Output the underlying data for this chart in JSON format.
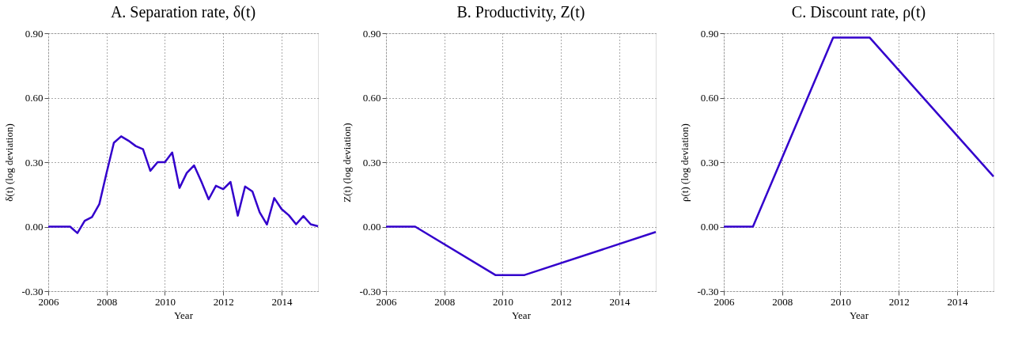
{
  "chart_data": [
    {
      "type": "line",
      "title": "A. Separation rate, δ(t)",
      "xlabel": "Year",
      "ylabel": "δ(t)  (log deviation)",
      "x": [
        2006,
        2006.75,
        2007,
        2007.25,
        2007.5,
        2007.75,
        2008,
        2008.25,
        2008.5,
        2008.75,
        2009,
        2009.25,
        2009.5,
        2009.75,
        2010,
        2010.25,
        2010.5,
        2010.75,
        2011,
        2011.25,
        2011.5,
        2011.75,
        2012,
        2012.25,
        2012.5,
        2012.75,
        2013,
        2013.25,
        2013.5,
        2013.75,
        2014,
        2014.25,
        2014.5,
        2014.75,
        2015,
        2015.25
      ],
      "series": [
        {
          "color": "#3300cc",
          "values": [
            0,
            0,
            -0.03,
            0.027,
            0.045,
            0.104,
            0.25,
            0.39,
            0.42,
            0.4,
            0.375,
            0.36,
            0.26,
            0.3,
            0.3,
            0.345,
            0.18,
            0.25,
            0.285,
            0.21,
            0.127,
            0.19,
            0.174,
            0.208,
            0.051,
            0.187,
            0.164,
            0.067,
            0.01,
            0.133,
            0.082,
            0.053,
            0.011,
            0.049,
            0.011,
            0.002
          ]
        }
      ],
      "xlim": [
        2006,
        2015.25
      ],
      "xticks": [
        2006,
        2008,
        2010,
        2012,
        2014
      ],
      "ylim": [
        -0.3,
        0.9
      ],
      "yticks": [
        {
          "value": -0.3,
          "label": "-0.30"
        },
        {
          "value": 0,
          "label": "0.00"
        },
        {
          "value": 0.3,
          "label": "0.30"
        },
        {
          "value": 0.6,
          "label": "0.60"
        },
        {
          "value": 0.9,
          "label": "0.90"
        }
      ],
      "grid": true
    },
    {
      "type": "line",
      "title": "B. Productivity, Z(t)",
      "xlabel": "Year",
      "ylabel": "Z(t)  (log deviation)",
      "x": [
        2006,
        2007,
        2009.75,
        2010.75,
        2015.25
      ],
      "series": [
        {
          "color": "#3300cc",
          "values": [
            0,
            0,
            -0.225,
            -0.225,
            -0.025
          ]
        }
      ],
      "xlim": [
        2006,
        2015.25
      ],
      "xticks": [
        2006,
        2008,
        2010,
        2012,
        2014
      ],
      "ylim": [
        -0.3,
        0.9
      ],
      "yticks": [
        {
          "value": -0.3,
          "label": "-0.30"
        },
        {
          "value": 0,
          "label": "0.00"
        },
        {
          "value": 0.3,
          "label": "0.30"
        },
        {
          "value": 0.6,
          "label": "0.60"
        },
        {
          "value": 0.9,
          "label": "0.90"
        }
      ],
      "grid": true
    },
    {
      "type": "line",
      "title": "C. Discount rate, ρ(t)",
      "xlabel": "Year",
      "ylabel": "ρ(t)  (log deviation)",
      "x": [
        2006,
        2007,
        2009.75,
        2011,
        2015.25
      ],
      "series": [
        {
          "color": "#3300cc",
          "values": [
            0,
            0,
            0.88,
            0.88,
            0.233
          ]
        }
      ],
      "xlim": [
        2006,
        2015.25
      ],
      "xticks": [
        2006,
        2008,
        2010,
        2012,
        2014
      ],
      "ylim": [
        -0.3,
        0.9
      ],
      "yticks": [
        {
          "value": -0.3,
          "label": "-0.30"
        },
        {
          "value": 0,
          "label": "0.00"
        },
        {
          "value": 0.3,
          "label": "0.30"
        },
        {
          "value": 0.6,
          "label": "0.60"
        },
        {
          "value": 0.9,
          "label": "0.90"
        }
      ],
      "grid": true
    }
  ]
}
